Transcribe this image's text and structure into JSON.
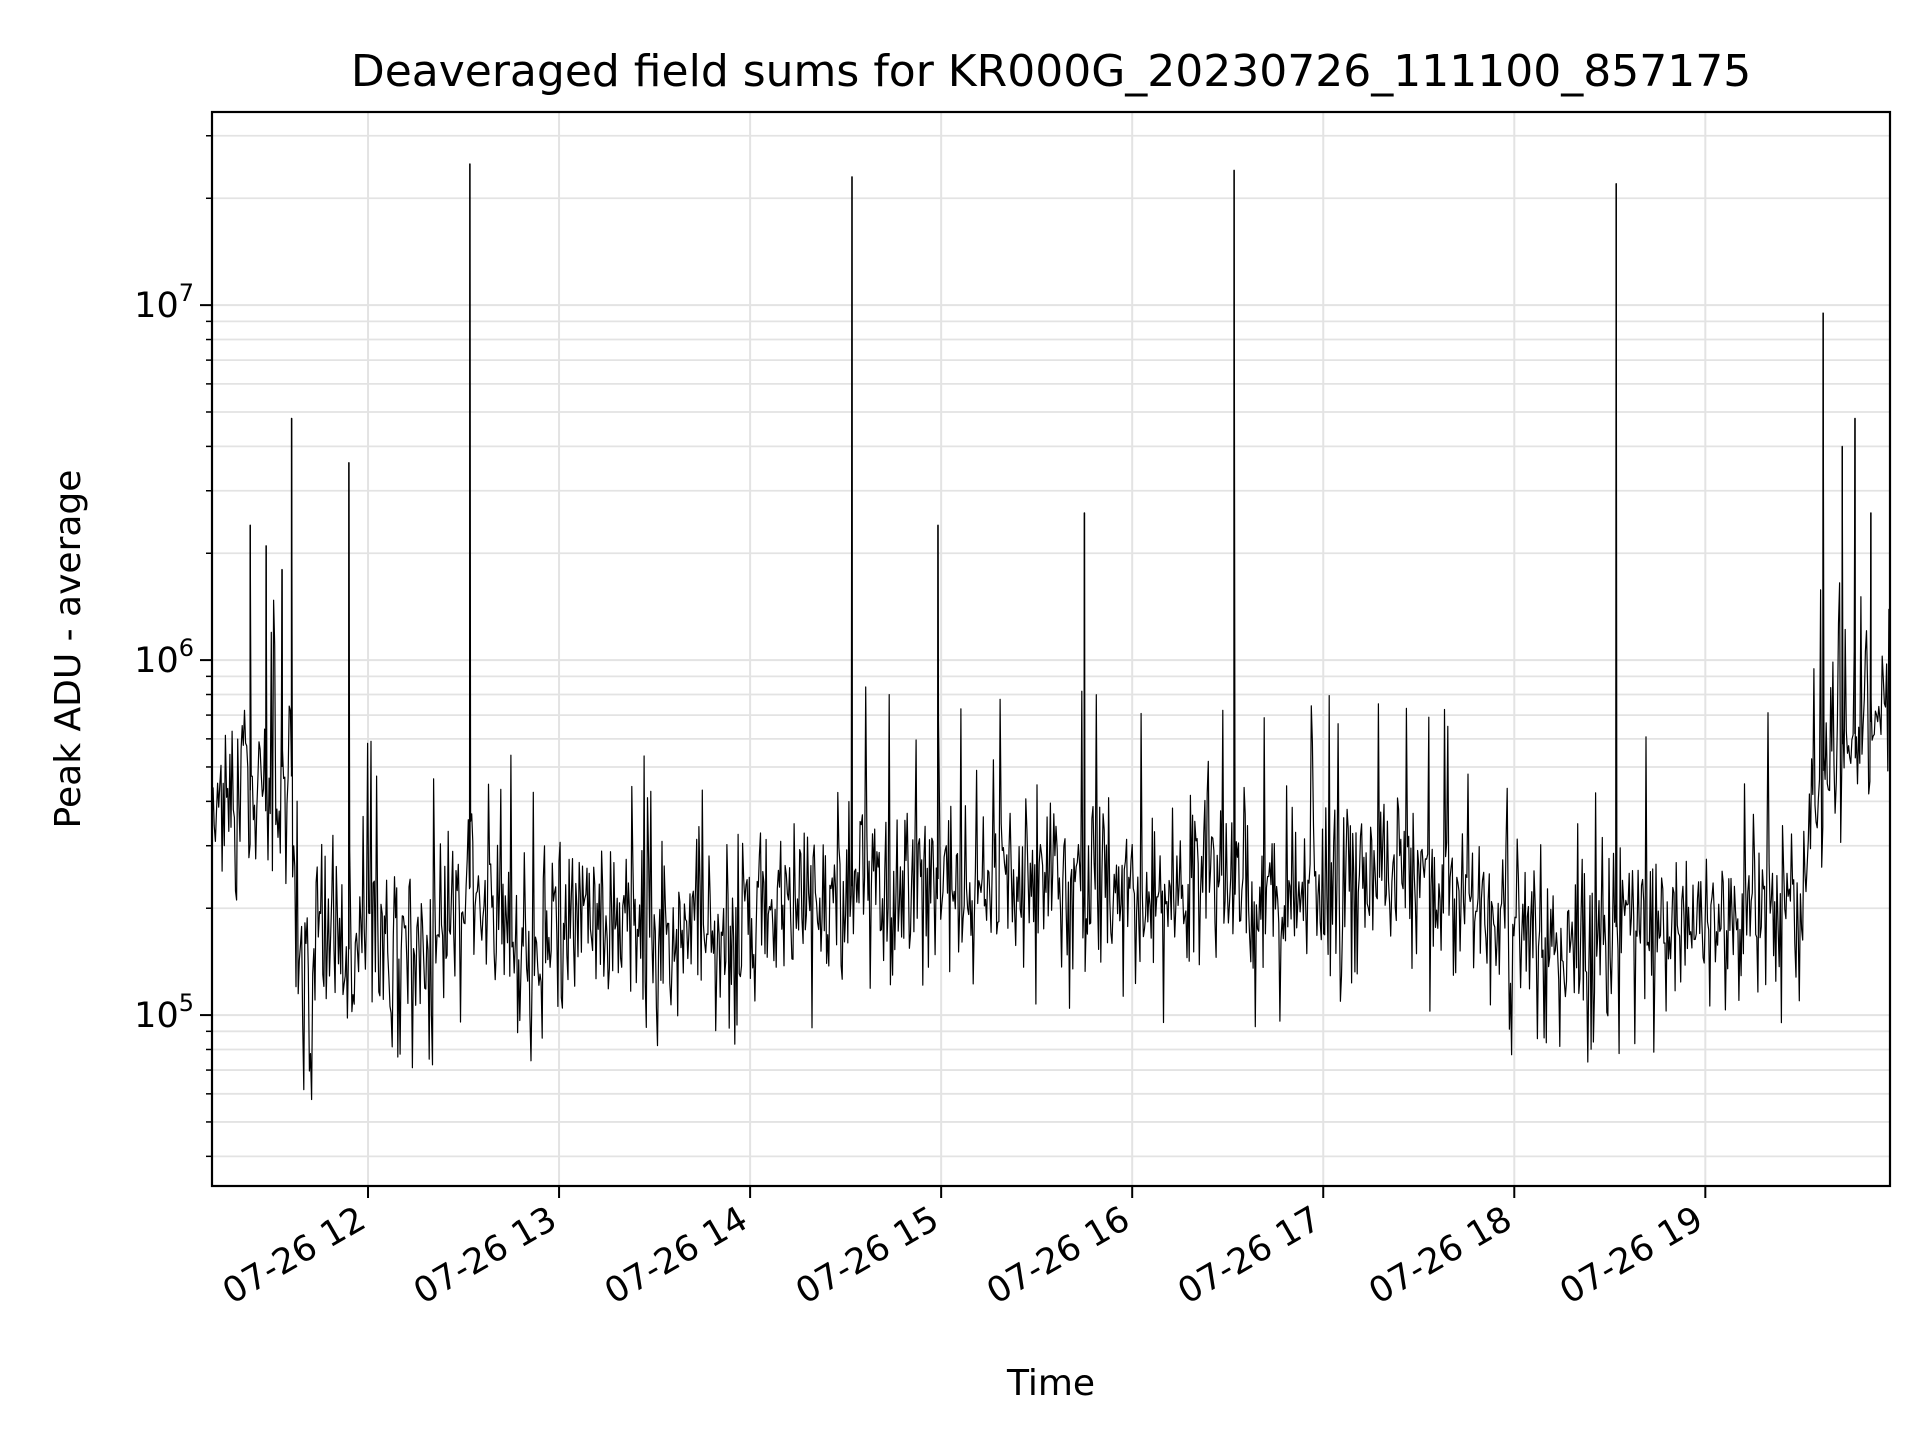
{
  "chart_data": {
    "type": "line",
    "title": "Deaveraged field sums for KR000G_20230726_111100_857175",
    "xlabel": "Time",
    "ylabel": "Peak ADU - average",
    "yscale": "log",
    "ylim": [
      33000,
      35000000
    ],
    "xlim": [
      "2023-07-26T11:11",
      "2023-07-26T19:58"
    ],
    "grid": true,
    "line_color": "#000000",
    "x_ticks": [
      {
        "value": "2023-07-26T12:00",
        "label": "07-26 12"
      },
      {
        "value": "2023-07-26T13:00",
        "label": "07-26 13"
      },
      {
        "value": "2023-07-26T14:00",
        "label": "07-26 14"
      },
      {
        "value": "2023-07-26T15:00",
        "label": "07-26 15"
      },
      {
        "value": "2023-07-26T16:00",
        "label": "07-26 16"
      },
      {
        "value": "2023-07-26T17:00",
        "label": "07-26 17"
      },
      {
        "value": "2023-07-26T18:00",
        "label": "07-26 18"
      },
      {
        "value": "2023-07-26T19:00",
        "label": "07-26 19"
      }
    ],
    "y_ticks": [
      {
        "value": 100000,
        "base": "10",
        "exponent": "5"
      },
      {
        "value": 1000000,
        "base": "10",
        "exponent": "6"
      },
      {
        "value": 10000000,
        "base": "10",
        "exponent": "7"
      }
    ],
    "series": [
      {
        "x": [
          "2023-07-26T11:11",
          "2023-07-26T11:15",
          "2023-07-26T11:18",
          "2023-07-26T11:21",
          "2023-07-26T11:24",
          "2023-07-26T11:27",
          "2023-07-26T11:30",
          "2023-07-26T11:33",
          "2023-07-26T11:36",
          "2023-07-26T11:38",
          "2023-07-26T11:40",
          "2023-07-26T11:42",
          "2023-07-26T11:44",
          "2023-07-26T11:46",
          "2023-07-26T11:48",
          "2023-07-26T11:50",
          "2023-07-26T11:52",
          "2023-07-26T11:55",
          "2023-07-26T11:58",
          "2023-07-26T12:02",
          "2023-07-26T12:08",
          "2023-07-26T12:15",
          "2023-07-26T12:20",
          "2023-07-26T12:25",
          "2023-07-26T12:30",
          "2023-07-26T12:35",
          "2023-07-26T12:42",
          "2023-07-26T12:48",
          "2023-07-26T12:55",
          "2023-07-26T13:05",
          "2023-07-26T13:15",
          "2023-07-26T13:25",
          "2023-07-26T13:35",
          "2023-07-26T13:45",
          "2023-07-26T13:55",
          "2023-07-26T14:05",
          "2023-07-26T14:15",
          "2023-07-26T14:25",
          "2023-07-26T14:35",
          "2023-07-26T14:45",
          "2023-07-26T14:55",
          "2023-07-26T15:05",
          "2023-07-26T15:15",
          "2023-07-26T15:25",
          "2023-07-26T15:35",
          "2023-07-26T15:45",
          "2023-07-26T15:55",
          "2023-07-26T16:05",
          "2023-07-26T16:15",
          "2023-07-26T16:25",
          "2023-07-26T16:35",
          "2023-07-26T16:45",
          "2023-07-26T16:55",
          "2023-07-26T17:05",
          "2023-07-26T17:15",
          "2023-07-26T17:25",
          "2023-07-26T17:35",
          "2023-07-26T17:45",
          "2023-07-26T17:55",
          "2023-07-26T18:05",
          "2023-07-26T18:15",
          "2023-07-26T18:25",
          "2023-07-26T18:35",
          "2023-07-26T18:45",
          "2023-07-26T18:55",
          "2023-07-26T19:05",
          "2023-07-26T19:15",
          "2023-07-26T19:25",
          "2023-07-26T19:30",
          "2023-07-26T19:35",
          "2023-07-26T19:40",
          "2023-07-26T19:45",
          "2023-07-26T19:50",
          "2023-07-26T19:55",
          "2023-07-26T19:58"
        ],
        "y": [
          450000,
          400000,
          500000,
          450000,
          420000,
          480000,
          450000,
          500000,
          470000,
          150000,
          120000,
          110000,
          180000,
          200000,
          190000,
          170000,
          160000,
          150000,
          180000,
          170000,
          160000,
          170000,
          180000,
          200000,
          250000,
          200000,
          180000,
          160000,
          170000,
          200000,
          180000,
          170000,
          160000,
          180000,
          170000,
          200000,
          220000,
          210000,
          240000,
          230000,
          250000,
          230000,
          240000,
          260000,
          250000,
          240000,
          230000,
          220000,
          230000,
          240000,
          220000,
          210000,
          230000,
          250000,
          260000,
          240000,
          230000,
          200000,
          180000,
          170000,
          160000,
          170000,
          180000,
          170000,
          180000,
          190000,
          200000,
          220000,
          230000,
          450000,
          550000,
          600000,
          650000,
          700000,
          650000
        ]
      }
    ],
    "spikes": [
      {
        "x": "2023-07-26T11:23",
        "y": 2400000
      },
      {
        "x": "2023-07-26T11:28",
        "y": 2100000
      },
      {
        "x": "2023-07-26T11:33",
        "y": 1800000
      },
      {
        "x": "2023-07-26T11:36",
        "y": 4800000
      },
      {
        "x": "2023-07-26T11:54",
        "y": 3600000
      },
      {
        "x": "2023-07-26T12:32",
        "y": 25000000
      },
      {
        "x": "2023-07-26T14:32",
        "y": 23000000
      },
      {
        "x": "2023-07-26T14:59",
        "y": 2400000
      },
      {
        "x": "2023-07-26T15:45",
        "y": 2600000
      },
      {
        "x": "2023-07-26T16:32",
        "y": 24000000
      },
      {
        "x": "2023-07-26T18:32",
        "y": 22000000
      },
      {
        "x": "2023-07-26T19:37",
        "y": 9500000
      },
      {
        "x": "2023-07-26T19:43",
        "y": 4000000
      },
      {
        "x": "2023-07-26T19:47",
        "y": 4800000
      },
      {
        "x": "2023-07-26T19:52",
        "y": 2600000
      }
    ]
  }
}
